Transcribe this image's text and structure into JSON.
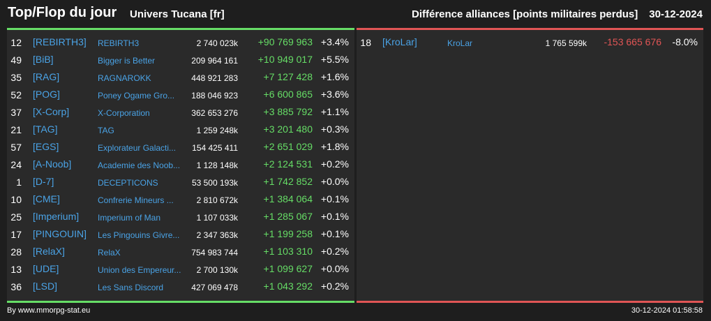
{
  "header": {
    "title": "Top/Flop du jour",
    "universe": "Univers Tucana [fr]",
    "category": "Différence alliances [points militaires perdus]",
    "date": "30-12-2024"
  },
  "top": [
    {
      "rank": "12",
      "tag": "[REBIRTH3]",
      "name": "REBIRTH3",
      "points": "2 740 023k",
      "diff": "+90 769 963",
      "pct": "+3.4%"
    },
    {
      "rank": "49",
      "tag": "[BiB]",
      "name": "Bigger is Better",
      "points": "209 964 161",
      "diff": "+10 949 017",
      "pct": "+5.5%"
    },
    {
      "rank": "35",
      "tag": "[RAG]",
      "name": "RAGNAROKK",
      "points": "448 921 283",
      "diff": "+7 127 428",
      "pct": "+1.6%"
    },
    {
      "rank": "52",
      "tag": "[POG]",
      "name": "Poney Ogame Gro...",
      "points": "188 046 923",
      "diff": "+6 600 865",
      "pct": "+3.6%"
    },
    {
      "rank": "37",
      "tag": "[X-Corp]",
      "name": "X-Corporation",
      "points": "362 653 276",
      "diff": "+3 885 792",
      "pct": "+1.1%"
    },
    {
      "rank": "21",
      "tag": "[TAG]",
      "name": "TAG",
      "points": "1 259 248k",
      "diff": "+3 201 480",
      "pct": "+0.3%"
    },
    {
      "rank": "57",
      "tag": "[EGS]",
      "name": "Explorateur Galacti...",
      "points": "154 425 411",
      "diff": "+2 651 029",
      "pct": "+1.8%"
    },
    {
      "rank": "24",
      "tag": "[A-Noob]",
      "name": "Academie des Noob...",
      "points": "1 128 148k",
      "diff": "+2 124 531",
      "pct": "+0.2%"
    },
    {
      "rank": "1",
      "tag": "[D-7]",
      "name": "DECEPTICONS",
      "points": "53 500 193k",
      "diff": "+1 742 852",
      "pct": "+0.0%"
    },
    {
      "rank": "10",
      "tag": "[CME]",
      "name": "Confrerie Mineurs ...",
      "points": "2 810 672k",
      "diff": "+1 384 064",
      "pct": "+0.1%"
    },
    {
      "rank": "25",
      "tag": "[Imperium]",
      "name": "Imperium of Man",
      "points": "1 107 033k",
      "diff": "+1 285 067",
      "pct": "+0.1%"
    },
    {
      "rank": "17",
      "tag": "[PINGOUIN]",
      "name": "Les Pingouins Givre...",
      "points": "2 347 363k",
      "diff": "+1 199 258",
      "pct": "+0.1%"
    },
    {
      "rank": "28",
      "tag": "[RelaX]",
      "name": "RelaX",
      "points": "754 983 744",
      "diff": "+1 103 310",
      "pct": "+0.2%"
    },
    {
      "rank": "13",
      "tag": "[UDE]",
      "name": "Union des Empereur...",
      "points": "2 700 130k",
      "diff": "+1 099 627",
      "pct": "+0.0%"
    },
    {
      "rank": "36",
      "tag": "[LSD]",
      "name": "Les Sans Discord",
      "points": "427 069 478",
      "diff": "+1 043 292",
      "pct": "+0.2%"
    }
  ],
  "flop": [
    {
      "rank": "18",
      "tag": "[KroLar]",
      "name": "KroLar",
      "points": "1 765 599k",
      "diff": "-153 665 676",
      "pct": "-8.0%"
    }
  ],
  "footer": {
    "credit": "By www.mmorpg-stat.eu",
    "timestamp": "30-12-2024 01:58:58"
  },
  "colors": {
    "positive": "#66dd66",
    "negative": "#e05555",
    "link": "#4aa3e6"
  }
}
